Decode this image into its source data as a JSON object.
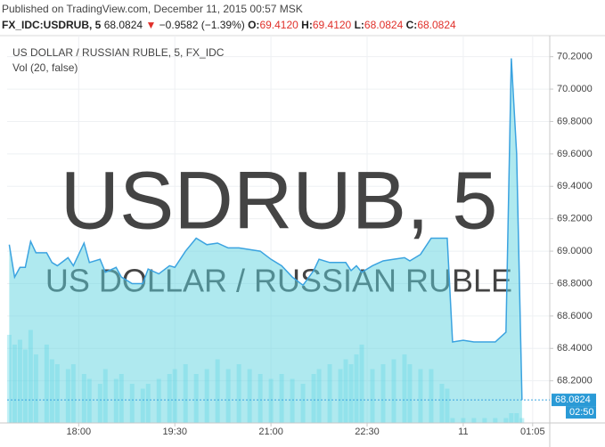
{
  "header": {
    "published": "Published on TradingView.com, December 11, 2015 00:57 MSK",
    "symbol": "FX_IDC:USDRUB, 5",
    "last": "68.0824",
    "change": "−0.9582 (−1.39%)",
    "open_label": "O:",
    "open": "69.4120",
    "high_label": "H:",
    "high": "69.4120",
    "low_label": "L:",
    "low": "68.0824",
    "close_label": "C:",
    "close": "68.0824"
  },
  "chart_data": {
    "type": "area",
    "title": "US DOLLAR / RUSSIAN RUBLE, 5, FX_IDC",
    "watermark": "USDRUB, 5",
    "watermark_subtitle": "US DOLLAR / RUSSIAN RUBLE",
    "x": [
      1015,
      1020,
      1025,
      1030,
      1035,
      1040,
      1050,
      1055,
      1060,
      1070,
      1075,
      1085,
      1090,
      1100,
      1105,
      1115,
      1120,
      1130,
      1140,
      1145,
      1155,
      1165,
      1170,
      1180,
      1190,
      1200,
      1210,
      1220,
      1230,
      1240,
      1250,
      1260,
      1270,
      1280,
      1290,
      1300,
      1305,
      1315,
      1325,
      1330,
      1335,
      1340,
      1345,
      1355,
      1365,
      1375,
      1385,
      1390,
      1400,
      1410,
      1420,
      1425,
      1430,
      1440,
      1450,
      1460,
      1470,
      1480,
      1485,
      1490,
      1495
    ],
    "xlim": [
      1013,
      1521
    ],
    "xticks": [
      {
        "value": 1080,
        "label": "18:00"
      },
      {
        "value": 1170,
        "label": "19:30"
      },
      {
        "value": 1260,
        "label": "21:00"
      },
      {
        "value": 1350,
        "label": "22:30"
      },
      {
        "value": 1440,
        "label": "11"
      },
      {
        "value": 1505,
        "label": "01:05"
      }
    ],
    "ylim": [
      67.94,
      70.33
    ],
    "yticks": [
      {
        "value": 68.2,
        "label": "68.2000"
      },
      {
        "value": 68.4,
        "label": "68.4000"
      },
      {
        "value": 68.6,
        "label": "68.6000"
      },
      {
        "value": 68.8,
        "label": "68.8000"
      },
      {
        "value": 69,
        "label": "69.0000"
      },
      {
        "value": 69.2,
        "label": "69.2000"
      },
      {
        "value": 69.4,
        "label": "69.4000"
      },
      {
        "value": 69.6,
        "label": "69.6000"
      },
      {
        "value": 69.8,
        "label": "69.8000"
      },
      {
        "value": 70,
        "label": "70.0000"
      },
      {
        "value": 70.2,
        "label": "70.2000"
      }
    ],
    "grid": true,
    "series": [
      {
        "color": "#3ba3e0",
        "values": [
          69.04,
          68.84,
          68.9,
          68.9,
          69.06,
          68.99,
          68.99,
          68.93,
          68.91,
          68.96,
          68.91,
          69.05,
          68.93,
          68.95,
          68.87,
          68.9,
          68.84,
          68.8,
          68.8,
          68.89,
          68.86,
          68.91,
          68.9,
          69.0,
          69.08,
          69.04,
          69.05,
          69.02,
          69.02,
          69.01,
          69.0,
          68.95,
          68.91,
          68.84,
          68.79,
          68.88,
          68.95,
          68.93,
          68.93,
          68.93,
          68.88,
          68.91,
          68.87,
          68.91,
          68.94,
          68.95,
          68.96,
          68.94,
          68.98,
          69.08,
          69.08,
          69.08,
          68.44,
          68.45,
          68.44,
          68.44,
          68.44,
          68.5,
          70.19,
          69.6,
          68.0824
        ]
      }
    ],
    "volume": {
      "label": "Vol (20, false)",
      "color": "#55d4e6",
      "axis": "y2",
      "values": [
        90,
        80,
        85,
        75,
        95,
        70,
        80,
        65,
        60,
        55,
        60,
        50,
        45,
        40,
        55,
        45,
        50,
        40,
        35,
        40,
        45,
        50,
        55,
        60,
        50,
        55,
        65,
        55,
        60,
        55,
        50,
        45,
        50,
        45,
        40,
        50,
        55,
        60,
        55,
        65,
        60,
        70,
        80,
        55,
        60,
        65,
        70,
        60,
        55,
        55,
        40,
        35,
        5,
        5,
        5,
        5,
        5,
        5,
        10,
        10,
        5
      ]
    },
    "y2lim": [
      0,
      100
    ],
    "last_price": 68.0824,
    "countdown": "02:50"
  }
}
